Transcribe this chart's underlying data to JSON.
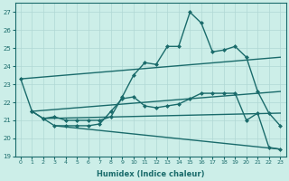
{
  "xlabel": "Humidex (Indice chaleur)",
  "ylabel": "",
  "xlim": [
    -0.5,
    23.5
  ],
  "ylim": [
    19,
    27.5
  ],
  "yticks": [
    19,
    20,
    21,
    22,
    23,
    24,
    25,
    26,
    27
  ],
  "xticks": [
    0,
    1,
    2,
    3,
    4,
    5,
    6,
    7,
    8,
    9,
    10,
    11,
    12,
    13,
    14,
    15,
    16,
    17,
    18,
    19,
    20,
    21,
    22,
    23
  ],
  "bg_color": "#cceee8",
  "grid_color": "#b0d8d4",
  "line_color": "#1a6b6b",
  "lines": [
    {
      "x": [
        0,
        1,
        2,
        3,
        4,
        5,
        6,
        7,
        8,
        9,
        10,
        11,
        12,
        13,
        14,
        15,
        16,
        17,
        18,
        19,
        20,
        21,
        22,
        23
      ],
      "y": [
        23.3,
        21.5,
        21.1,
        21.2,
        21.0,
        21.0,
        21.0,
        21.0,
        21.2,
        22.3,
        23.5,
        24.2,
        24.1,
        25.1,
        25.1,
        27.0,
        26.4,
        24.8,
        24.9,
        25.1,
        24.5,
        22.6,
        21.4,
        20.7
      ],
      "marker": "D",
      "markersize": 2.0,
      "linewidth": 1.0
    },
    {
      "x": [
        1,
        2,
        3,
        4,
        5,
        6,
        7,
        8,
        9,
        10,
        11,
        12,
        13,
        14,
        15,
        16,
        17,
        18,
        19,
        20,
        21,
        22,
        23
      ],
      "y": [
        21.5,
        21.1,
        20.7,
        20.7,
        20.7,
        20.7,
        20.8,
        21.5,
        22.2,
        22.3,
        21.8,
        21.7,
        21.8,
        21.9,
        22.2,
        22.5,
        22.5,
        22.5,
        22.5,
        21.0,
        21.4,
        19.5,
        19.4
      ],
      "marker": "D",
      "markersize": 2.0,
      "linewidth": 1.0
    },
    {
      "x": [
        0,
        23
      ],
      "y": [
        23.3,
        24.5
      ],
      "marker": null,
      "markersize": 0,
      "linewidth": 1.0
    },
    {
      "x": [
        1,
        23
      ],
      "y": [
        21.5,
        22.6
      ],
      "marker": null,
      "markersize": 0,
      "linewidth": 1.0
    },
    {
      "x": [
        2,
        23
      ],
      "y": [
        21.1,
        21.4
      ],
      "marker": null,
      "markersize": 0,
      "linewidth": 1.0
    },
    {
      "x": [
        3,
        23
      ],
      "y": [
        20.7,
        19.4
      ],
      "marker": null,
      "markersize": 0,
      "linewidth": 1.0
    }
  ]
}
